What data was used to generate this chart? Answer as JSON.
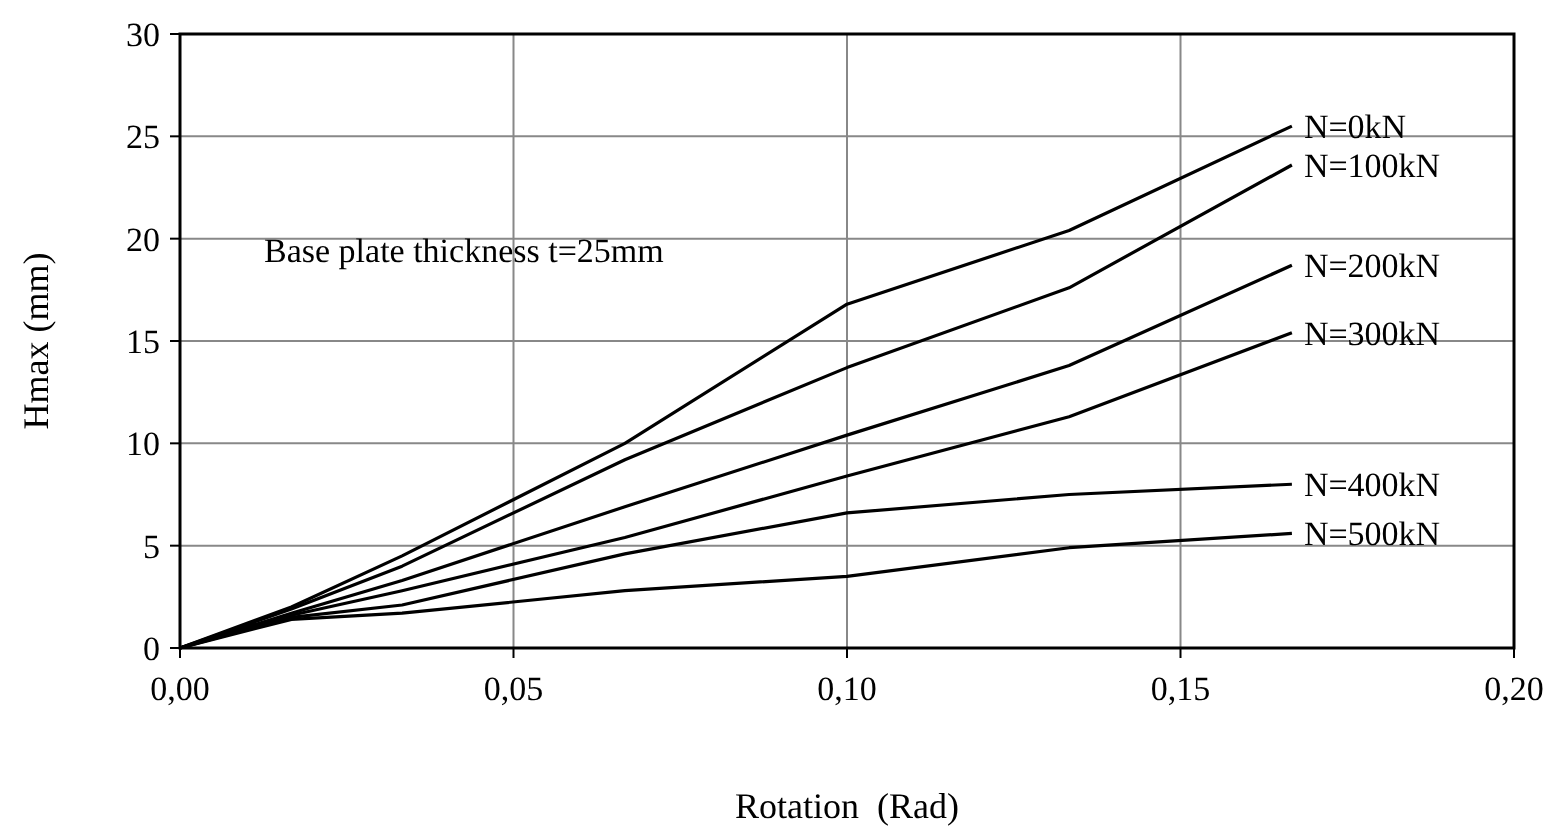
{
  "chart_data": {
    "type": "line",
    "xlabel": "Rotation  (Rad)",
    "ylabel": "Hmax (mm)",
    "annotations": [
      "Base plate thickness t=25mm"
    ],
    "x": [
      0,
      0.0167,
      0.0333,
      0.0667,
      0.1,
      0.1333,
      0.1667
    ],
    "series": [
      {
        "name": "N=0kN",
        "color": "#000000",
        "values": [
          0,
          2.0,
          4.5,
          10,
          16.8,
          20.4,
          25.5
        ]
      },
      {
        "name": "N=100kN",
        "color": "#000000",
        "values": [
          0,
          1.9,
          4.0,
          9.2,
          13.7,
          17.6,
          23.6
        ]
      },
      {
        "name": "N=200kN",
        "color": "#000000",
        "values": [
          0,
          1.7,
          3.3,
          6.9,
          10.4,
          13.8,
          18.7
        ]
      },
      {
        "name": "N=300kN",
        "color": "#000000",
        "values": [
          0,
          1.6,
          2.8,
          5.4,
          8.4,
          11.3,
          15.4
        ]
      },
      {
        "name": "N=400kN",
        "color": "#000000",
        "values": [
          0,
          1.5,
          2.1,
          4.6,
          6.6,
          7.5,
          8.0
        ]
      },
      {
        "name": "N=500kN",
        "color": "#000000",
        "values": [
          0,
          1.4,
          1.7,
          2.8,
          3.5,
          4.9,
          5.6
        ]
      }
    ],
    "xlim": [
      0,
      0.2
    ],
    "xticks": [
      {
        "value": 0,
        "label": "0,00"
      },
      {
        "value": 0.05,
        "label": "0,05"
      },
      {
        "value": 0.1,
        "label": "0,10"
      },
      {
        "value": 0.15,
        "label": "0,15"
      },
      {
        "value": 0.2,
        "label": "0,20"
      }
    ],
    "ylim": [
      0,
      30
    ],
    "yticks": [
      0,
      5,
      10,
      15,
      20,
      25,
      30
    ],
    "grid": true,
    "marker": "none",
    "line_style": "solid"
  }
}
